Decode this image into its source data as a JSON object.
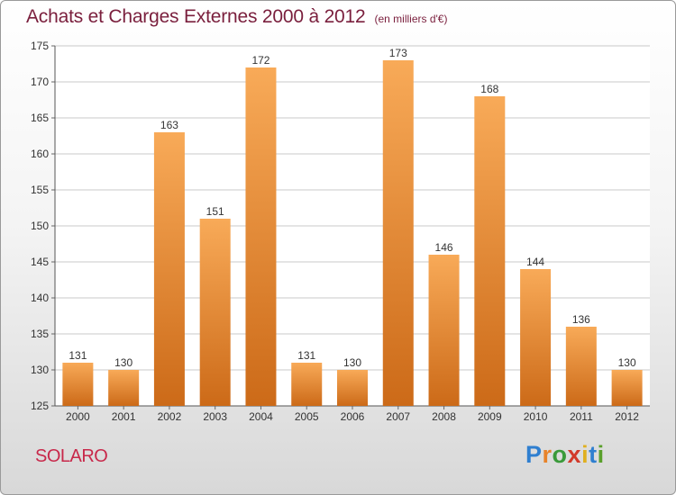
{
  "title": "Achats et Charges Externes 2000 à 2012",
  "subtitle": "(en milliers d'€)",
  "town": "SOLARO",
  "logo": {
    "letters": [
      "P",
      "r",
      "o",
      "x",
      "i",
      "t",
      "i"
    ],
    "colors": [
      "#2f7fd0",
      "#e8832a",
      "#3a9a3a",
      "#d23a2a",
      "#e0b020",
      "#2f7fd0",
      "#5aa02c"
    ]
  },
  "colors": {
    "title": "#7a1f3d",
    "town": "#c8284a",
    "bar_top": "#f8aa58",
    "bar_bottom": "#cc6a18",
    "grid": "#c8c8c8"
  },
  "chart_data": {
    "type": "bar",
    "title": "Achats et Charges Externes 2000 à 2012",
    "subtitle": "(en milliers d'€)",
    "xlabel": "",
    "ylabel": "",
    "categories": [
      "2000",
      "2001",
      "2002",
      "2003",
      "2004",
      "2005",
      "2006",
      "2007",
      "2008",
      "2009",
      "2010",
      "2011",
      "2012"
    ],
    "values": [
      131,
      130,
      163,
      151,
      172,
      131,
      130,
      173,
      146,
      168,
      144,
      136,
      130
    ],
    "ylim": [
      125,
      175
    ],
    "yticks": [
      125,
      130,
      135,
      140,
      145,
      150,
      155,
      160,
      165,
      170,
      175
    ],
    "grid": true,
    "legend": "none"
  }
}
